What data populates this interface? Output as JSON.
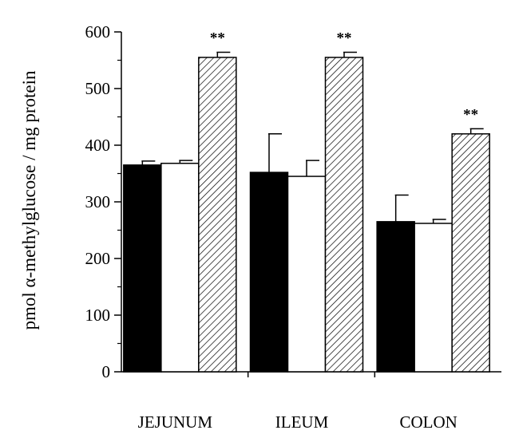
{
  "chart_data": {
    "type": "bar",
    "title": "",
    "xlabel": "",
    "ylabel": "pmol α-methylglucose / mg protein",
    "ylim": [
      0,
      600
    ],
    "yticks": [
      0,
      100,
      200,
      300,
      400,
      500,
      600
    ],
    "categories": [
      "JEJUNUM",
      "ILEUM",
      "COLON"
    ],
    "grid": false,
    "legend": "none",
    "series": [
      {
        "fill": "solid-black",
        "values": [
          365,
          352,
          265
        ],
        "errors": [
          7,
          68,
          47
        ]
      },
      {
        "fill": "white",
        "values": [
          368,
          345,
          262
        ],
        "errors": [
          5,
          28,
          7
        ]
      },
      {
        "fill": "diagonal-hatch",
        "values": [
          555,
          555,
          420
        ],
        "errors": [
          9,
          9,
          9
        ]
      }
    ],
    "annotations": [
      {
        "category": "JEJUNUM",
        "series_index": 2,
        "text": "**"
      },
      {
        "category": "ILEUM",
        "series_index": 2,
        "text": "**"
      },
      {
        "category": "COLON",
        "series_index": 2,
        "text": "**"
      }
    ]
  }
}
